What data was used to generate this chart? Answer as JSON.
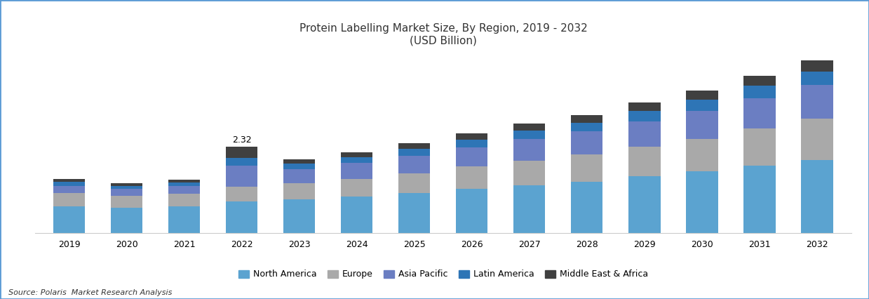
{
  "title_line1": "Protein Labelling Market Size, By Region, 2019 - 2032",
  "title_line2": "(USD Billion)",
  "years": [
    2019,
    2020,
    2021,
    2022,
    2023,
    2024,
    2025,
    2026,
    2027,
    2028,
    2029,
    2030,
    2031,
    2032
  ],
  "north_america": [
    0.72,
    0.68,
    0.72,
    0.85,
    0.9,
    0.98,
    1.08,
    1.18,
    1.28,
    1.38,
    1.52,
    1.65,
    1.8,
    1.95
  ],
  "europe": [
    0.35,
    0.32,
    0.34,
    0.4,
    0.44,
    0.48,
    0.53,
    0.6,
    0.66,
    0.72,
    0.8,
    0.88,
    1.0,
    1.12
  ],
  "asia_pacific": [
    0.2,
    0.18,
    0.2,
    0.55,
    0.38,
    0.42,
    0.47,
    0.52,
    0.58,
    0.62,
    0.68,
    0.75,
    0.82,
    0.9
  ],
  "latin_america": [
    0.1,
    0.09,
    0.1,
    0.22,
    0.14,
    0.16,
    0.18,
    0.2,
    0.22,
    0.24,
    0.27,
    0.3,
    0.33,
    0.36
  ],
  "mea": [
    0.08,
    0.07,
    0.08,
    0.3,
    0.12,
    0.13,
    0.15,
    0.17,
    0.19,
    0.2,
    0.22,
    0.24,
    0.27,
    0.3
  ],
  "colors": {
    "north_america": "#5BA3D0",
    "europe": "#A9A9A9",
    "asia_pacific": "#6B7EC2",
    "latin_america": "#2E75B6",
    "mea": "#404040"
  },
  "annotation_year": 2022,
  "annotation_text": "2.32",
  "source_text": "Source: Polaris  Market Research Analysis",
  "bar_width": 0.55,
  "ylim": [
    0,
    4.8
  ]
}
